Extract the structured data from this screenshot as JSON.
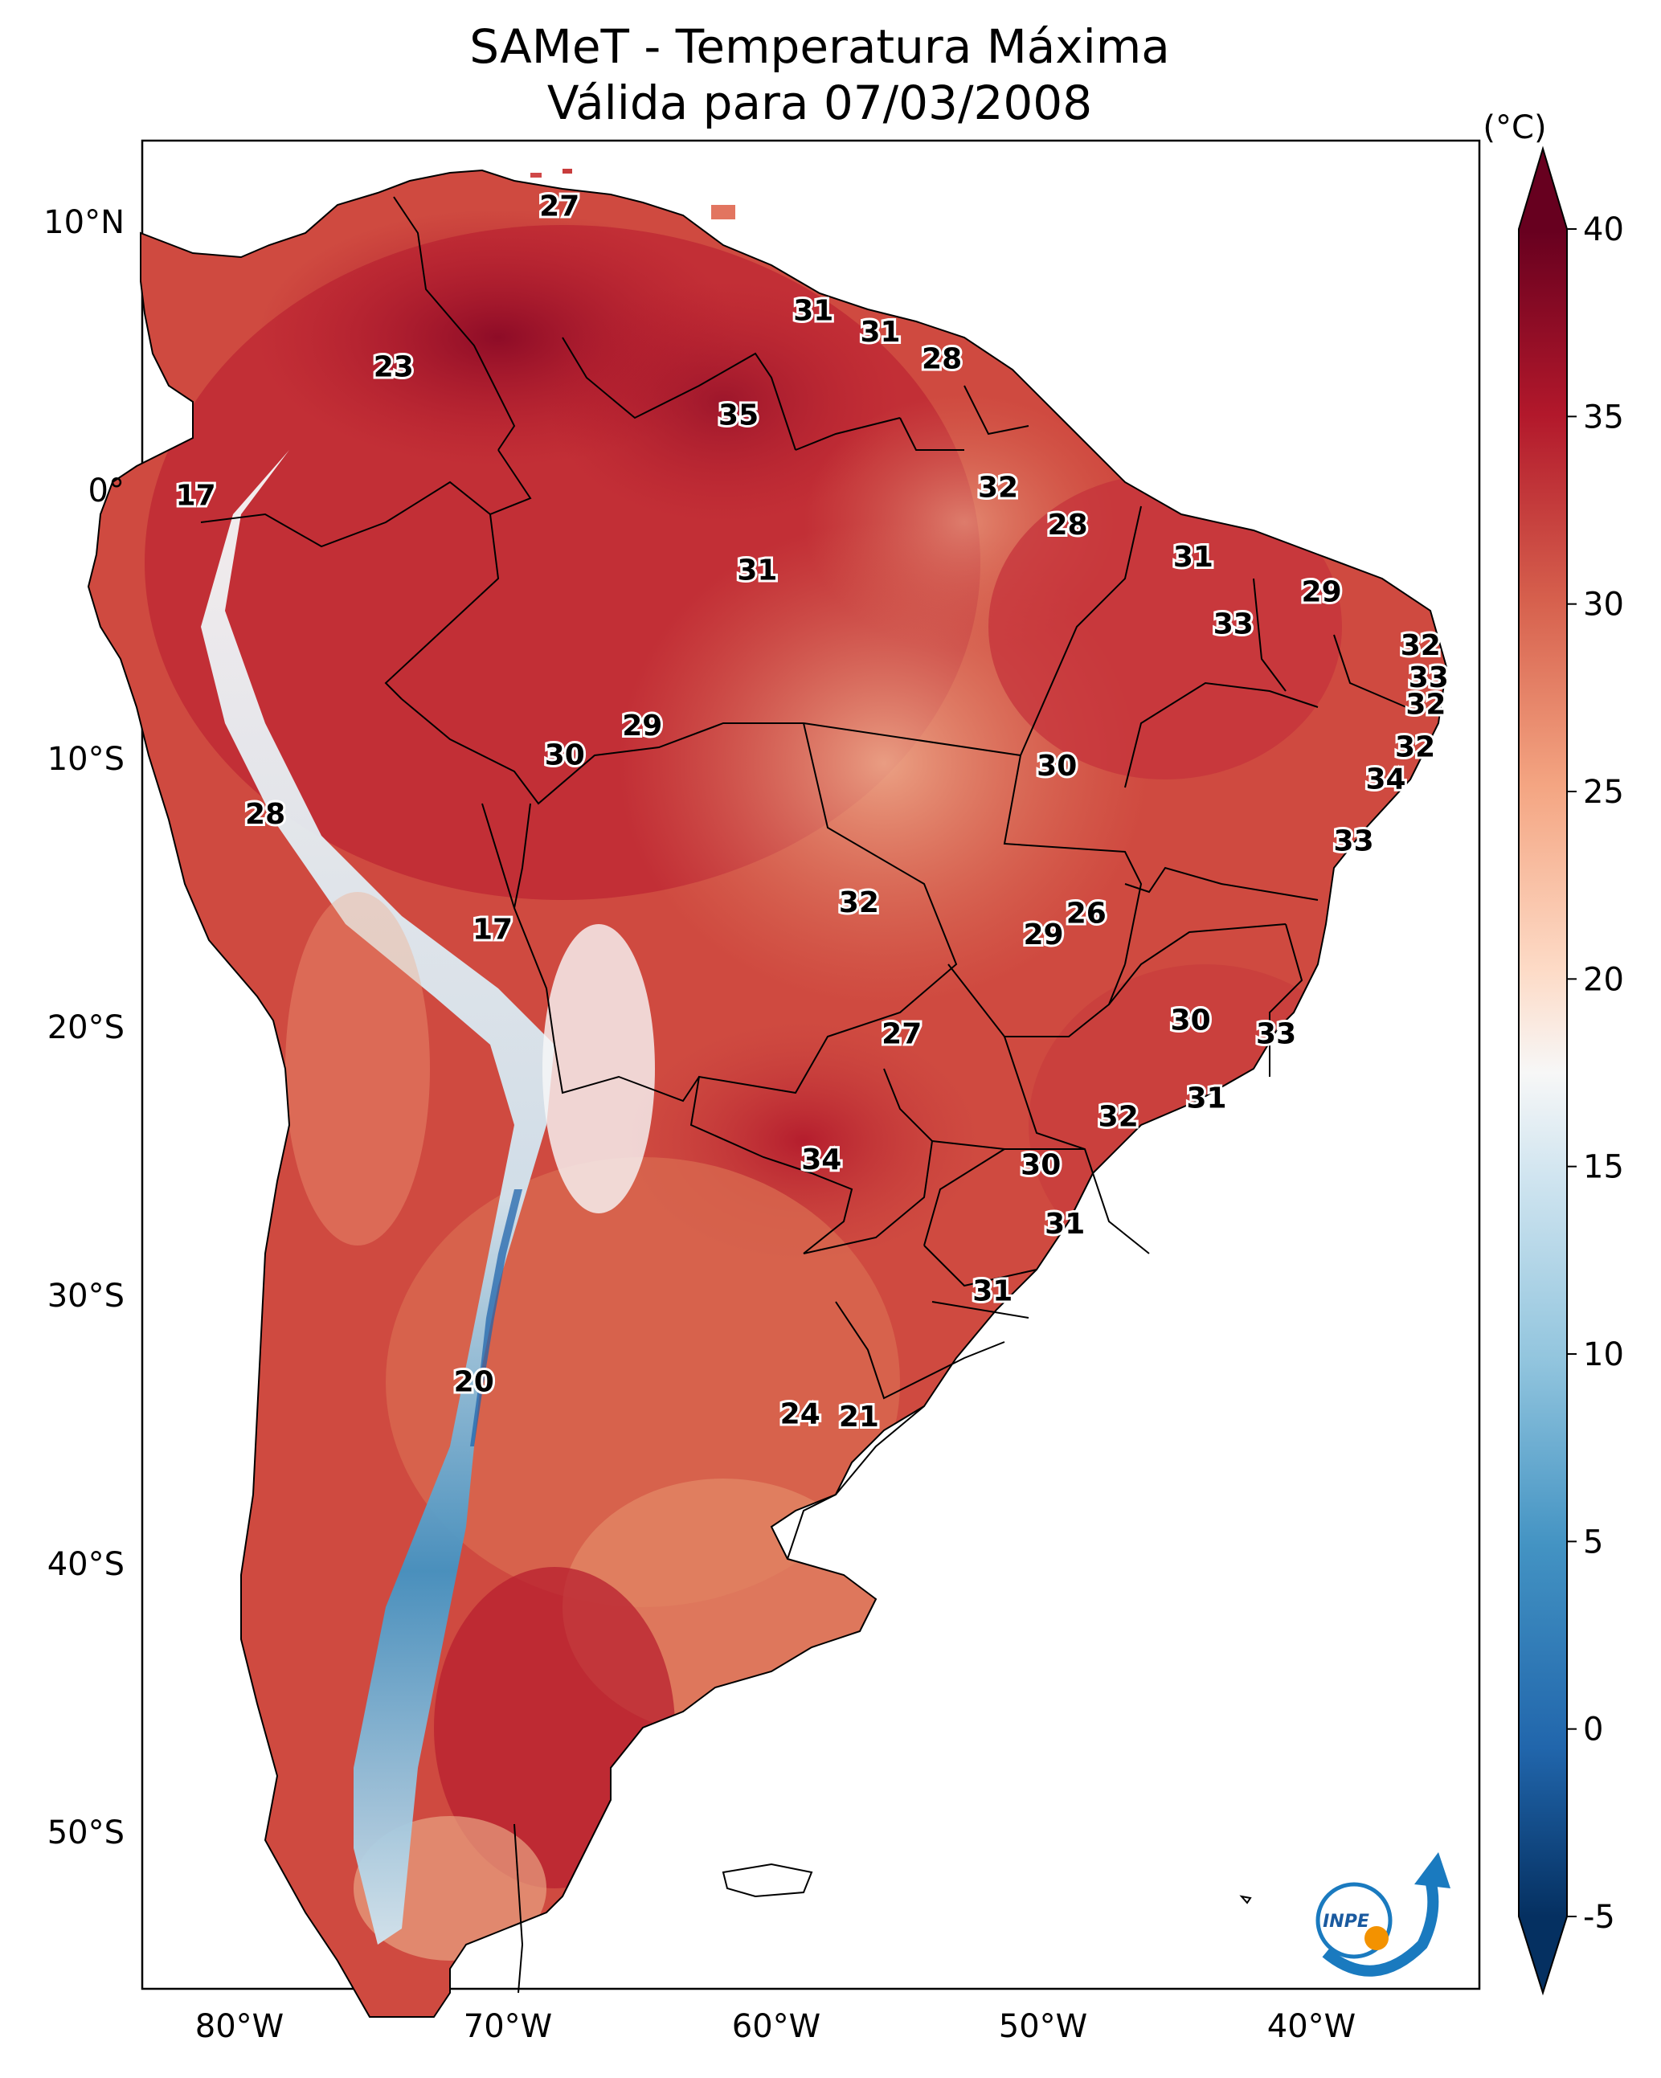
{
  "map": {
    "title_line1": "SAMeT - Temperatura Máxima",
    "title_line2": "Válida para 07/03/2008",
    "unit_label": "(°C)",
    "lon_labels": [
      "80°W",
      "70°W",
      "60°W",
      "50°W",
      "40°W"
    ],
    "lat_labels": [
      "10°N",
      "0°",
      "10°S",
      "20°S",
      "30°S",
      "40°S",
      "50°S"
    ],
    "colorbar_ticks": [
      "40",
      "35",
      "30",
      "25",
      "20",
      "15",
      "10",
      "5",
      "0",
      "-5"
    ],
    "colorbar_colors": [
      "#67001f",
      "#b2182b",
      "#d6604d",
      "#f4a582",
      "#fddbc7",
      "#f7f7f7",
      "#d1e5f0",
      "#92c5de",
      "#4393c3",
      "#2166ac",
      "#053061"
    ],
    "logo_text": "INPE"
  },
  "chart_data": {
    "type": "heatmap",
    "title": "SAMeT - Temperatura Máxima",
    "subtitle": "Válida para 07/03/2008",
    "colorbar": {
      "label": "(°C)",
      "min": -5,
      "max": 40,
      "ticks": [
        40,
        35,
        30,
        25,
        20,
        15,
        10,
        5,
        0,
        -5
      ],
      "extend": "both",
      "colormap": "RdBu_r"
    },
    "extent": {
      "lon": [
        -83,
        -33
      ],
      "lat": [
        -56,
        13
      ]
    },
    "station_values": [
      {
        "lon": -67.4,
        "lat": 10.5,
        "value": "27"
      },
      {
        "lon": -73.6,
        "lat": 4.5,
        "value": "23"
      },
      {
        "lon": -57.9,
        "lat": 6.6,
        "value": "31"
      },
      {
        "lon": -55.4,
        "lat": 5.8,
        "value": "31"
      },
      {
        "lon": -53.1,
        "lat": 4.8,
        "value": "28"
      },
      {
        "lon": -60.7,
        "lat": 2.7,
        "value": "35"
      },
      {
        "lon": -51.0,
        "lat": 0.0,
        "value": "32"
      },
      {
        "lon": -81.0,
        "lat": -0.3,
        "value": "17"
      },
      {
        "lon": -48.4,
        "lat": -1.4,
        "value": "28"
      },
      {
        "lon": -43.7,
        "lat": -2.6,
        "value": "31"
      },
      {
        "lon": -60.0,
        "lat": -3.1,
        "value": "31"
      },
      {
        "lon": -38.9,
        "lat": -3.9,
        "value": "29"
      },
      {
        "lon": -42.2,
        "lat": -5.1,
        "value": "33"
      },
      {
        "lon": -35.2,
        "lat": -5.9,
        "value": "32"
      },
      {
        "lon": -34.9,
        "lat": -7.1,
        "value": "33"
      },
      {
        "lon": -35.0,
        "lat": -8.1,
        "value": "32"
      },
      {
        "lon": -64.3,
        "lat": -8.9,
        "value": "29"
      },
      {
        "lon": -67.2,
        "lat": -10.0,
        "value": "30"
      },
      {
        "lon": -48.8,
        "lat": -10.4,
        "value": "30"
      },
      {
        "lon": -35.4,
        "lat": -9.7,
        "value": "32"
      },
      {
        "lon": -36.5,
        "lat": -10.9,
        "value": "34"
      },
      {
        "lon": -78.4,
        "lat": -12.2,
        "value": "28"
      },
      {
        "lon": -37.7,
        "lat": -13.2,
        "value": "33"
      },
      {
        "lon": -69.9,
        "lat": -16.5,
        "value": "17"
      },
      {
        "lon": -56.2,
        "lat": -15.5,
        "value": "32"
      },
      {
        "lon": -47.7,
        "lat": -15.9,
        "value": "26"
      },
      {
        "lon": -49.3,
        "lat": -16.7,
        "value": "29"
      },
      {
        "lon": -43.8,
        "lat": -19.9,
        "value": "30"
      },
      {
        "lon": -54.6,
        "lat": -20.4,
        "value": "27"
      },
      {
        "lon": -40.6,
        "lat": -20.4,
        "value": "33"
      },
      {
        "lon": -43.2,
        "lat": -22.8,
        "value": "31"
      },
      {
        "lon": -46.5,
        "lat": -23.5,
        "value": "32"
      },
      {
        "lon": -57.6,
        "lat": -25.1,
        "value": "34"
      },
      {
        "lon": -49.4,
        "lat": -25.3,
        "value": "30"
      },
      {
        "lon": -48.5,
        "lat": -27.5,
        "value": "31"
      },
      {
        "lon": -51.2,
        "lat": -30.0,
        "value": "31"
      },
      {
        "lon": -70.6,
        "lat": -33.4,
        "value": "20"
      },
      {
        "lon": -58.4,
        "lat": -34.6,
        "value": "24"
      },
      {
        "lon": -56.2,
        "lat": -34.7,
        "value": "21"
      }
    ]
  }
}
